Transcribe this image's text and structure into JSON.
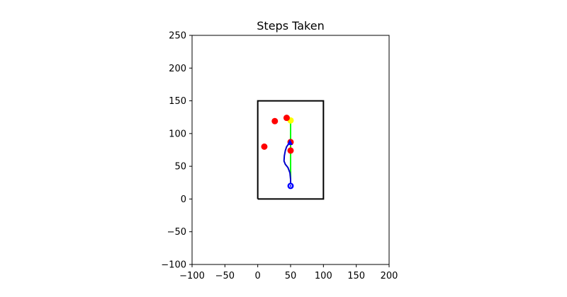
{
  "chart_data": {
    "type": "line",
    "title": "Steps Taken",
    "xlabel": "",
    "ylabel": "",
    "xlim": [
      -100,
      200
    ],
    "ylim": [
      -100,
      250
    ],
    "xticks": [
      -100,
      -50,
      0,
      50,
      100,
      150,
      200
    ],
    "yticks": [
      -100,
      -50,
      0,
      50,
      100,
      150,
      200,
      250
    ],
    "xtick_labels": [
      "−100",
      "−50",
      "0",
      "50",
      "100",
      "150",
      "200"
    ],
    "ytick_labels": [
      "−100",
      "−50",
      "0",
      "50",
      "100",
      "150",
      "200",
      "250"
    ],
    "grid": false,
    "legend": "none",
    "boundary": {
      "x": [
        0,
        100,
        100,
        0,
        0
      ],
      "y": [
        0,
        0,
        150,
        150,
        0
      ],
      "color": "#000000"
    },
    "series": [
      {
        "path": "target",
        "color": "#00ff00",
        "x": [
          50,
          50
        ],
        "y": [
          22,
          120
        ]
      },
      {
        "path": "steps",
        "color": "#0000cc",
        "x": [
          50,
          50,
          49,
          46,
          42,
          40,
          40.5,
          42,
          44,
          47,
          49
        ],
        "y": [
          20,
          30,
          40,
          48,
          53,
          58,
          66,
          74,
          80,
          84,
          86
        ]
      }
    ],
    "markers": [
      {
        "type": "start",
        "color": "#0000ff",
        "x": 50,
        "y": 20
      },
      {
        "type": "goal",
        "color": "#ffff00",
        "x": 50,
        "y": 120
      },
      {
        "type": "obstacle",
        "color": "#ff0000",
        "x": 10,
        "y": 80
      },
      {
        "type": "obstacle",
        "color": "#ff0000",
        "x": 26,
        "y": 119
      },
      {
        "type": "obstacle",
        "color": "#ff0000",
        "x": 44,
        "y": 124
      },
      {
        "type": "obstacle",
        "color": "#ff0000",
        "x": 50,
        "y": 87
      },
      {
        "type": "obstacle",
        "color": "#ff0000",
        "x": 50,
        "y": 74
      }
    ]
  }
}
